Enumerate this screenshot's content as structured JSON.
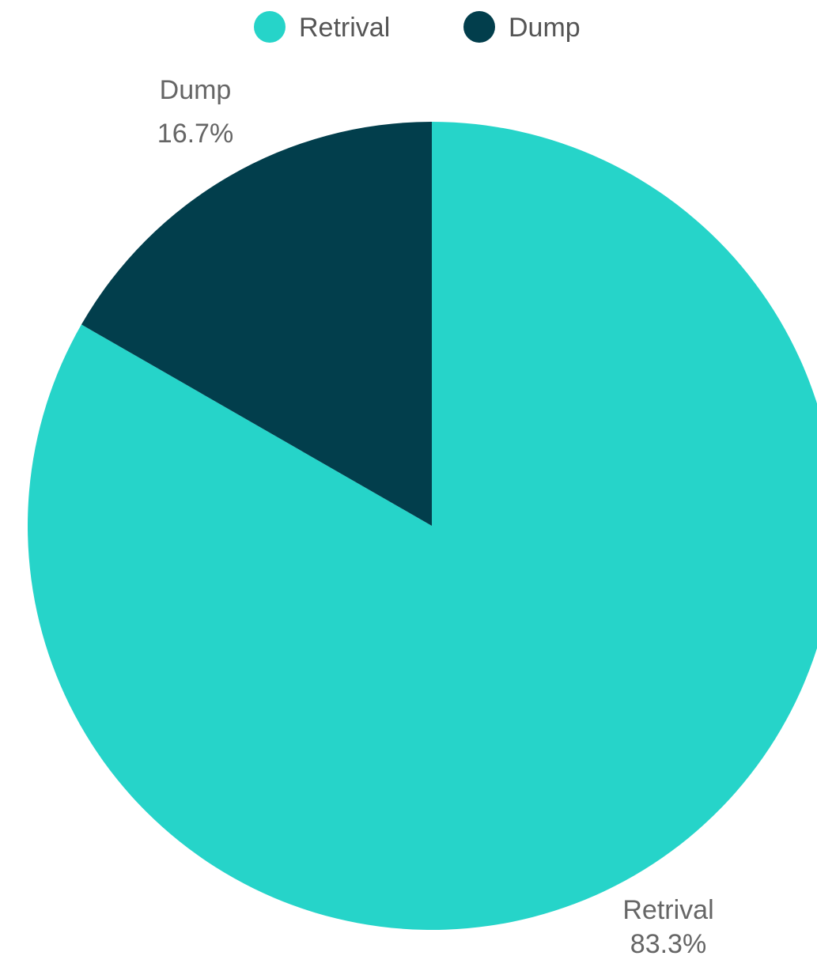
{
  "chart_data": {
    "type": "pie",
    "legend_position": "top",
    "start_angle_deg": -90,
    "direction": "clockwise",
    "slices": [
      {
        "label": "Retrival",
        "value": 83.3,
        "percent_label": "83.3%",
        "color": "#26d4c9"
      },
      {
        "label": "Dump",
        "value": 16.7,
        "percent_label": "16.7%",
        "color": "#023e4c"
      }
    ]
  }
}
